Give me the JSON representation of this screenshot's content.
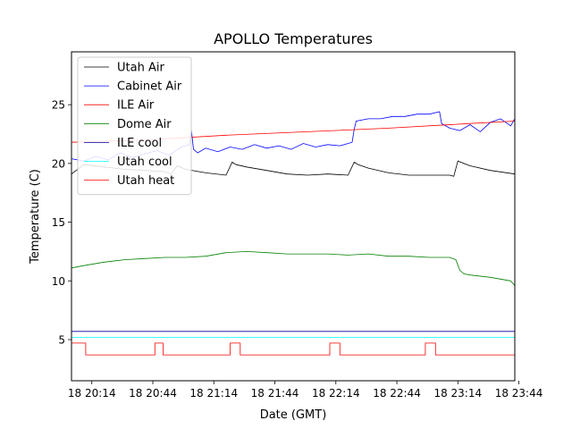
{
  "chart_data": {
    "type": "line",
    "title": "APOLLO Temperatures",
    "xlabel": "Date (GMT)",
    "ylabel": "Temperature (C)",
    "xlim": [
      1204,
      1422
    ],
    "ylim": [
      1.5,
      29.5
    ],
    "x_ticks": [
      {
        "value": 1214,
        "label": "18 20:14"
      },
      {
        "value": 1244,
        "label": "18 20:44"
      },
      {
        "value": 1274,
        "label": "18 21:14"
      },
      {
        "value": 1304,
        "label": "18 21:44"
      },
      {
        "value": 1334,
        "label": "18 22:14"
      },
      {
        "value": 1364,
        "label": "18 22:44"
      },
      {
        "value": 1394,
        "label": "18 23:14"
      },
      {
        "value": 1424,
        "label": "18 23:44"
      }
    ],
    "y_ticks": [
      {
        "value": 5,
        "label": "5"
      },
      {
        "value": 10,
        "label": "10"
      },
      {
        "value": 15,
        "label": "15"
      },
      {
        "value": 20,
        "label": "20"
      },
      {
        "value": 25,
        "label": "25"
      }
    ],
    "legend_position": "top-left",
    "series": [
      {
        "name": "Utah Air",
        "color": "#000000",
        "x": [
          1204,
          1210,
          1220,
          1230,
          1240,
          1250,
          1253,
          1256,
          1260,
          1270,
          1280,
          1283,
          1285,
          1290,
          1300,
          1310,
          1320,
          1330,
          1340,
          1343,
          1345,
          1350,
          1360,
          1370,
          1380,
          1390,
          1392,
          1394,
          1400,
          1410,
          1422
        ],
        "values": [
          19.1,
          19.9,
          19.7,
          19.5,
          19.4,
          19.3,
          19.1,
          19.8,
          19.5,
          19.2,
          19.0,
          20.1,
          19.9,
          19.7,
          19.4,
          19.1,
          19.0,
          19.1,
          19.0,
          20.1,
          19.9,
          19.6,
          19.2,
          19.0,
          19.0,
          19.0,
          18.9,
          20.2,
          19.8,
          19.4,
          19.1
        ]
      },
      {
        "name": "Cabinet Air",
        "color": "#0000ff",
        "x": [
          1204,
          1210,
          1216,
          1222,
          1228,
          1234,
          1240,
          1246,
          1252,
          1258,
          1262,
          1263,
          1264,
          1266,
          1270,
          1276,
          1282,
          1288,
          1294,
          1300,
          1306,
          1312,
          1318,
          1324,
          1330,
          1336,
          1342,
          1343,
          1344,
          1350,
          1356,
          1362,
          1368,
          1374,
          1380,
          1385,
          1386,
          1390,
          1395,
          1400,
          1405,
          1410,
          1415,
          1420,
          1422
        ],
        "values": [
          20.4,
          20.2,
          20.6,
          20.3,
          20.9,
          20.5,
          20.8,
          21.1,
          20.7,
          21.4,
          21.6,
          22.8,
          21.2,
          20.9,
          21.3,
          21.0,
          21.4,
          21.2,
          21.6,
          21.3,
          21.5,
          21.2,
          21.7,
          21.4,
          21.6,
          21.5,
          21.8,
          22.9,
          23.6,
          23.8,
          23.8,
          24.0,
          24.0,
          24.2,
          24.2,
          24.4,
          23.4,
          23.0,
          22.8,
          23.3,
          22.7,
          23.5,
          23.8,
          23.2,
          23.8
        ]
      },
      {
        "name": "ILE Air",
        "color": "#ff0000",
        "x": [
          1204,
          1240,
          1280,
          1320,
          1360,
          1400,
          1422
        ],
        "values": [
          21.8,
          22.0,
          22.4,
          22.7,
          23.0,
          23.4,
          23.6
        ]
      },
      {
        "name": "Dome Air",
        "color": "#008000",
        "x": [
          1204,
          1210,
          1220,
          1230,
          1240,
          1250,
          1260,
          1270,
          1280,
          1290,
          1300,
          1310,
          1320,
          1330,
          1340,
          1350,
          1360,
          1370,
          1380,
          1390,
          1393,
          1395,
          1397,
          1400,
          1410,
          1420,
          1422
        ],
        "values": [
          11.1,
          11.3,
          11.6,
          11.8,
          11.9,
          12.0,
          12.0,
          12.1,
          12.4,
          12.5,
          12.4,
          12.3,
          12.3,
          12.3,
          12.2,
          12.3,
          12.1,
          12.1,
          12.0,
          12.0,
          11.8,
          10.9,
          10.6,
          10.5,
          10.3,
          10.0,
          9.6
        ]
      },
      {
        "name": "ILE cool",
        "color": "#0000a0",
        "x": [
          1204,
          1422
        ],
        "values": [
          5.7,
          5.7
        ]
      },
      {
        "name": "Utah cool",
        "color": "#00ffff",
        "x": [
          1204,
          1422
        ],
        "values": [
          5.2,
          5.2
        ]
      },
      {
        "name": "Utah heat",
        "color": "#ff0000",
        "x": [
          1204,
          1204,
          1205,
          1205,
          1211,
          1211,
          1245,
          1245,
          1249,
          1249,
          1282,
          1282,
          1287,
          1287,
          1331,
          1331,
          1336,
          1336,
          1378,
          1378,
          1383,
          1383,
          1422
        ],
        "values": [
          2.8,
          4.7,
          4.7,
          4.7,
          4.7,
          3.7,
          3.7,
          4.7,
          4.7,
          3.7,
          3.7,
          4.7,
          4.7,
          3.7,
          3.7,
          4.7,
          4.7,
          3.7,
          3.7,
          4.7,
          4.7,
          3.7,
          3.7
        ]
      }
    ]
  }
}
